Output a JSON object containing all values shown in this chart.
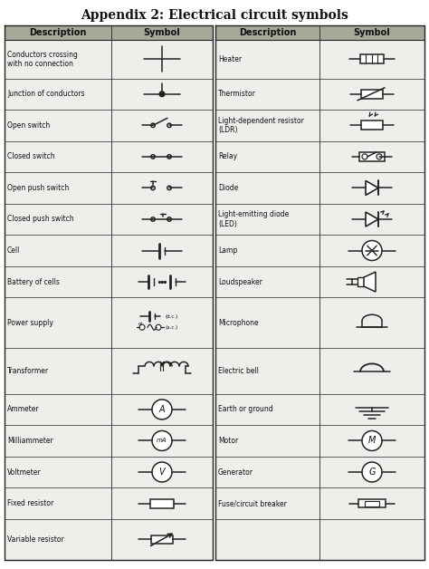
{
  "title": "Appendix 2: Electrical circuit symbols",
  "title_fontsize": 10,
  "header_bg": "#a8a89a",
  "row_bg": "#eeeeea",
  "line_color": "#222222",
  "text_color": "#111111",
  "left_rows": [
    "Conductors crossing\nwith no connection",
    "Junction of conductors",
    "Open switch",
    "Closed switch",
    "Open push switch",
    "Closed push switch",
    "Cell",
    "Battery of cells",
    "Power supply",
    "Transformer",
    "Ammeter",
    "Milliammeter",
    "Voltmeter",
    "Fixed resistor",
    "Variable resistor"
  ],
  "right_rows": [
    "Heater",
    "Thermistor",
    "Light-dependent resistor\n(LDR)",
    "Relay",
    "Diode",
    "Light-emitting diode\n(LED)",
    "Lamp",
    "Loudspeaker",
    "Microphone",
    "Electric bell",
    "Earth or ground",
    "Motor",
    "Generator",
    "Fuse/circuit breaker",
    ""
  ]
}
